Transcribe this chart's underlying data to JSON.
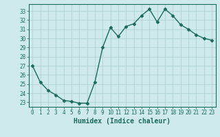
{
  "x": [
    0,
    1,
    2,
    3,
    4,
    5,
    6,
    7,
    8,
    9,
    10,
    11,
    12,
    13,
    14,
    15,
    16,
    17,
    18,
    19,
    20,
    21,
    22,
    23
  ],
  "y": [
    27,
    25.2,
    24.3,
    23.8,
    23.2,
    23.1,
    22.9,
    22.9,
    25.2,
    29.0,
    31.2,
    30.2,
    31.3,
    31.6,
    32.5,
    33.2,
    31.8,
    33.2,
    32.5,
    31.5,
    31.0,
    30.4,
    30.0,
    29.8
  ],
  "line_color": "#1a6b5a",
  "marker": "D",
  "markersize": 2.5,
  "linewidth": 1.0,
  "bg_color": "#ceeaea",
  "grid_color": "#aacece",
  "xlabel": "Humidex (Indice chaleur)",
  "ylim": [
    22.5,
    33.75
  ],
  "yticks": [
    23,
    24,
    25,
    26,
    27,
    28,
    29,
    30,
    31,
    32,
    33
  ],
  "xticks": [
    0,
    1,
    2,
    3,
    4,
    5,
    6,
    7,
    8,
    9,
    10,
    11,
    12,
    13,
    14,
    15,
    16,
    17,
    18,
    19,
    20,
    21,
    22,
    23
  ],
  "tick_color": "#1a6b5a",
  "label_color": "#1a6b5a",
  "xlabel_fontsize": 7,
  "tick_fontsize": 5.5
}
